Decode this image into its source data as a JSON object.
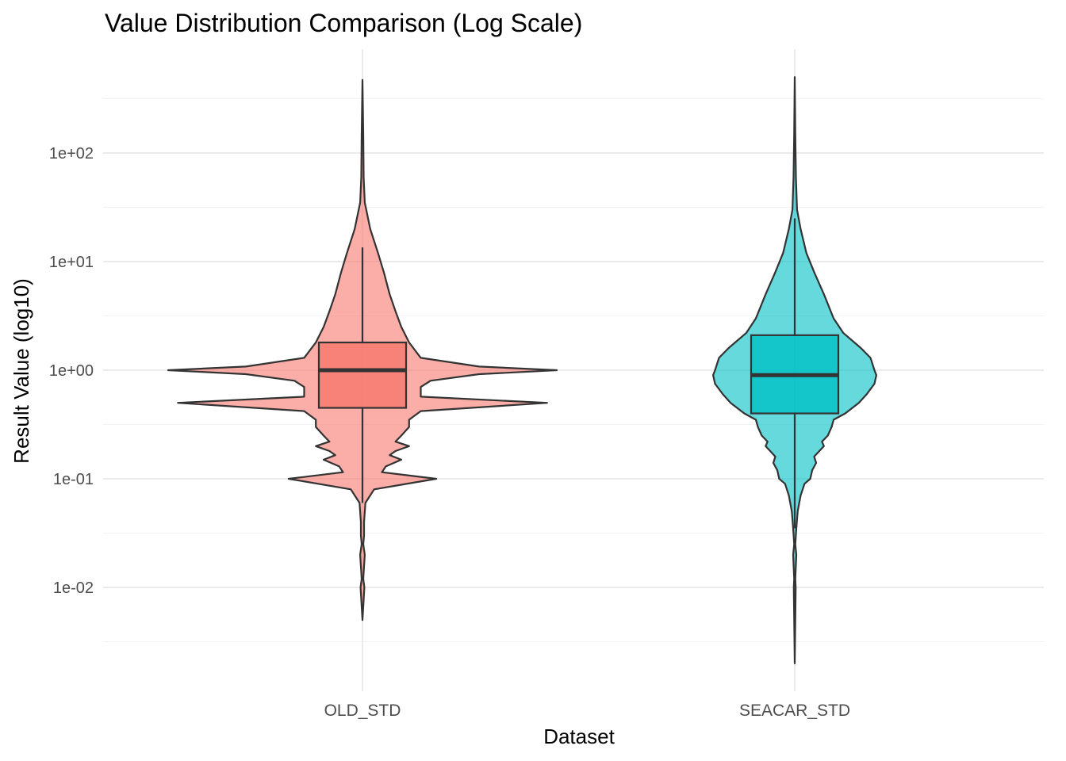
{
  "chart_data": {
    "type": "violin",
    "title": "Value Distribution Comparison (Log Scale)",
    "xlabel": "Dataset",
    "ylabel": "Result Value (log10)",
    "y_scale": "log10",
    "ylim": [
      0.0012,
      800
    ],
    "y_ticks": [
      0.01,
      0.1,
      1,
      10,
      100
    ],
    "y_tick_labels": [
      "1e-02",
      "1e-01",
      "1e+00",
      "1e+01",
      "1e+02"
    ],
    "categories": [
      "OLD_STD",
      "SEACAR_STD"
    ],
    "grid": true,
    "legend": "none",
    "series": [
      {
        "category": "OLD_STD",
        "color": "#F8766D",
        "violin_min": 0.005,
        "violin_max": 470,
        "box": {
          "whisker_low": 0.06,
          "q1": 0.45,
          "median": 1.0,
          "q3": 1.8,
          "whisker_high": 13.5
        },
        "density_profile": [
          [
            0.005,
            0.0
          ],
          [
            0.01,
            0.01
          ],
          [
            0.012,
            0.004
          ],
          [
            0.02,
            0.012
          ],
          [
            0.025,
            0.004
          ],
          [
            0.03,
            0.008
          ],
          [
            0.04,
            0.008
          ],
          [
            0.06,
            0.015
          ],
          [
            0.08,
            0.06
          ],
          [
            0.1,
            0.38
          ],
          [
            0.115,
            0.1
          ],
          [
            0.13,
            0.12
          ],
          [
            0.15,
            0.2
          ],
          [
            0.165,
            0.14
          ],
          [
            0.18,
            0.17
          ],
          [
            0.2,
            0.24
          ],
          [
            0.22,
            0.17
          ],
          [
            0.25,
            0.2
          ],
          [
            0.3,
            0.24
          ],
          [
            0.35,
            0.24
          ],
          [
            0.42,
            0.3
          ],
          [
            0.5,
            0.95
          ],
          [
            0.57,
            0.3
          ],
          [
            0.7,
            0.3
          ],
          [
            0.8,
            0.35
          ],
          [
            0.92,
            0.6
          ],
          [
            1.0,
            1.0
          ],
          [
            1.08,
            0.6
          ],
          [
            1.3,
            0.3
          ],
          [
            1.8,
            0.24
          ],
          [
            2.5,
            0.2
          ],
          [
            3.5,
            0.17
          ],
          [
            5,
            0.14
          ],
          [
            8,
            0.11
          ],
          [
            12,
            0.08
          ],
          [
            20,
            0.04
          ],
          [
            35,
            0.012
          ],
          [
            60,
            0.006
          ],
          [
            150,
            0.004
          ],
          [
            470,
            0.0
          ]
        ]
      },
      {
        "category": "SEACAR_STD",
        "color": "#00BFC4",
        "violin_min": 0.002,
        "violin_max": 500,
        "box": {
          "whisker_low": 0.035,
          "q1": 0.4,
          "median": 0.9,
          "q3": 2.1,
          "whisker_high": 25
        },
        "density_profile": [
          [
            0.002,
            0.0
          ],
          [
            0.01,
            0.005
          ],
          [
            0.012,
            0.003
          ],
          [
            0.02,
            0.008
          ],
          [
            0.025,
            0.003
          ],
          [
            0.035,
            0.008
          ],
          [
            0.05,
            0.015
          ],
          [
            0.07,
            0.03
          ],
          [
            0.09,
            0.05
          ],
          [
            0.1,
            0.08
          ],
          [
            0.12,
            0.09
          ],
          [
            0.14,
            0.11
          ],
          [
            0.16,
            0.1
          ],
          [
            0.2,
            0.15
          ],
          [
            0.22,
            0.14
          ],
          [
            0.25,
            0.17
          ],
          [
            0.3,
            0.19
          ],
          [
            0.35,
            0.2
          ],
          [
            0.4,
            0.26
          ],
          [
            0.5,
            0.33
          ],
          [
            0.6,
            0.37
          ],
          [
            0.75,
            0.41
          ],
          [
            0.9,
            0.42
          ],
          [
            1.0,
            0.41
          ],
          [
            1.3,
            0.39
          ],
          [
            1.6,
            0.34
          ],
          [
            2.2,
            0.25
          ],
          [
            3,
            0.2
          ],
          [
            5,
            0.15
          ],
          [
            8,
            0.1
          ],
          [
            12,
            0.06
          ],
          [
            20,
            0.03
          ],
          [
            30,
            0.012
          ],
          [
            60,
            0.006
          ],
          [
            150,
            0.003
          ],
          [
            500,
            0.0
          ]
        ]
      }
    ]
  }
}
